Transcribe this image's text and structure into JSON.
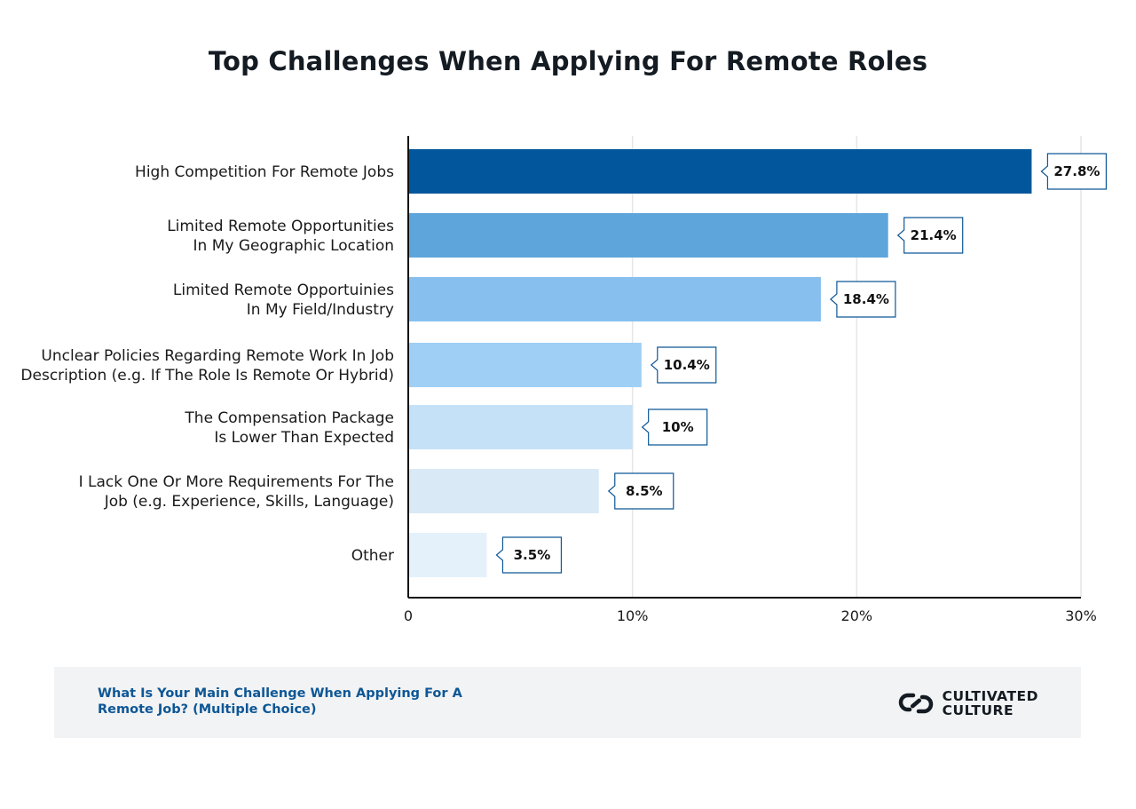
{
  "title": "Top Challenges When Applying For Remote Roles",
  "footer": {
    "question": "What Is Your Main Challenge When Applying For A Remote Job? (Multiple Choice)",
    "brand_line1": "CULTIVATED",
    "brand_line2": "CULTURE",
    "logo_icon": "chain-link-icon"
  },
  "chart_data": {
    "type": "bar",
    "orientation": "horizontal",
    "title": "Top Challenges When Applying For Remote Roles",
    "xlabel": "",
    "ylabel": "",
    "xlim": [
      0,
      30
    ],
    "grid": true,
    "legend": "none",
    "x_ticks": [
      "0",
      "10%",
      "20%",
      "30%"
    ],
    "categories": [
      [
        "High Competition For Remote Jobs"
      ],
      [
        "Limited Remote Opportunities",
        "In My Geographic Location"
      ],
      [
        "Limited Remote Opportuinies",
        "In My Field/Industry"
      ],
      [
        "Unclear Policies Regarding Remote Work In Job",
        "Description (e.g. If The Role Is Remote Or Hybrid)"
      ],
      [
        "The Compensation Package",
        "Is Lower Than Expected"
      ],
      [
        "I Lack One Or More Requirements For The",
        "Job (e.g. Experience, Skills, Language)"
      ],
      [
        "Other"
      ]
    ],
    "values": [
      27.8,
      21.4,
      18.4,
      10.4,
      10,
      8.5,
      3.5
    ],
    "value_labels": [
      "27.8%",
      "21.4%",
      "18.4%",
      "10.4%",
      "10%",
      "8.5%",
      "3.5%"
    ],
    "colors": [
      "#02569b",
      "#5ea5dc",
      "#87bfef",
      "#9fcff5",
      "#c5e1f7",
      "#d9e9f6",
      "#e4f1fb"
    ]
  }
}
